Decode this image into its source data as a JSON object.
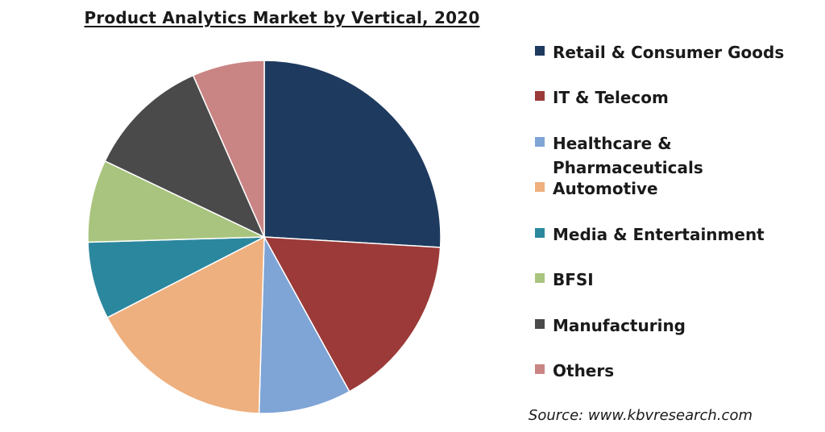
{
  "chart_data": {
    "type": "pie",
    "title": "Product Analytics Market by Vertical, 2020",
    "units": "%",
    "slices": [
      {
        "label": "Retail & Consumer Goods",
        "value": 27.5,
        "color": "#1e3a5f"
      },
      {
        "label": "IT & Telecom",
        "value": 17,
        "color": "#9b3a38"
      },
      {
        "label": "Healthcare & Pharmaceuticals",
        "value": 9,
        "color": "#7fa4d6"
      },
      {
        "label": "Automotive",
        "value": 18,
        "color": "#eeb07f"
      },
      {
        "label": "Media & Entertainment",
        "value": 7.5,
        "color": "#2b879e"
      },
      {
        "label": "BFSI",
        "value": 8,
        "color": "#a9c47e"
      },
      {
        "label": "Manufacturing",
        "value": 12,
        "color": "#4a4a4a"
      },
      {
        "label": "Others",
        "value": 7,
        "color": "#c98584"
      }
    ],
    "legend_position": "right"
  },
  "source": "Source: www.kbvresearch.com"
}
